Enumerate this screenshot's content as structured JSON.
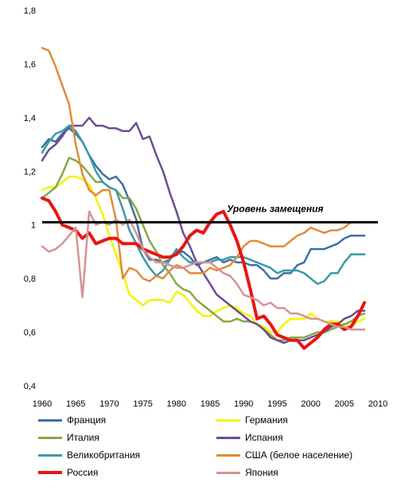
{
  "chart_data": {
    "type": "line",
    "title": "",
    "xlabel": "",
    "ylabel": "",
    "xlim": [
      1960,
      2010
    ],
    "ylim": [
      0.4,
      1.8
    ],
    "x_ticks": [
      "1960",
      "1965",
      "1970",
      "1975",
      "1980",
      "1985",
      "1990",
      "1995",
      "2000",
      "2005",
      "2010"
    ],
    "y_ticks": [
      "0,4",
      "0,6",
      "0,8",
      "1",
      "1,2",
      "1,4",
      "1,6",
      "1,8"
    ],
    "grid": false,
    "legend_position": "bottom",
    "annotation": {
      "text": "Уровень замещения",
      "y": 1.01
    },
    "series": [
      {
        "name": "Франция",
        "color": "#3f6fa4",
        "width": 2.5,
        "x": [
          1960,
          1961,
          1962,
          1963,
          1964,
          1965,
          1966,
          1967,
          1968,
          1969,
          1970,
          1971,
          1972,
          1973,
          1974,
          1975,
          1976,
          1977,
          1978,
          1979,
          1980,
          1981,
          1982,
          1983,
          1984,
          1985,
          1986,
          1987,
          1988,
          1989,
          1990,
          1991,
          1992,
          1993,
          1994,
          1995,
          1996,
          1997,
          1998,
          1999,
          2000,
          2001,
          2002,
          2003,
          2004,
          2005,
          2006,
          2007,
          2008
        ],
        "values": [
          1.29,
          1.32,
          1.31,
          1.34,
          1.36,
          1.34,
          1.31,
          1.26,
          1.22,
          1.19,
          1.17,
          1.18,
          1.15,
          1.09,
          1.02,
          0.91,
          0.87,
          0.87,
          0.86,
          0.87,
          0.9,
          0.9,
          0.88,
          0.85,
          0.86,
          0.87,
          0.88,
          0.86,
          0.87,
          0.86,
          0.86,
          0.85,
          0.85,
          0.83,
          0.8,
          0.8,
          0.82,
          0.82,
          0.85,
          0.86,
          0.91,
          0.91,
          0.91,
          0.92,
          0.93,
          0.95,
          0.96,
          0.96,
          0.96
        ]
      },
      {
        "name": "Германия",
        "color": "#f4f400",
        "width": 2.5,
        "x": [
          1960,
          1961,
          1962,
          1963,
          1964,
          1965,
          1966,
          1967,
          1968,
          1969,
          1970,
          1971,
          1972,
          1973,
          1974,
          1975,
          1976,
          1977,
          1978,
          1979,
          1980,
          1981,
          1982,
          1983,
          1984,
          1985,
          1986,
          1987,
          1988,
          1989,
          1990,
          1991,
          1992,
          1993,
          1994,
          1995,
          1996,
          1997,
          1998,
          1999,
          2000,
          2001,
          2002,
          2003,
          2004,
          2005,
          2006,
          2007,
          2008
        ],
        "values": [
          1.13,
          1.14,
          1.14,
          1.16,
          1.18,
          1.18,
          1.17,
          1.15,
          1.1,
          1.04,
          0.96,
          0.89,
          0.82,
          0.74,
          0.72,
          0.7,
          0.72,
          0.72,
          0.72,
          0.71,
          0.75,
          0.74,
          0.71,
          0.68,
          0.66,
          0.66,
          0.68,
          0.69,
          0.7,
          0.69,
          0.67,
          0.66,
          0.63,
          0.62,
          0.6,
          0.6,
          0.63,
          0.65,
          0.65,
          0.65,
          0.67,
          0.65,
          0.64,
          0.64,
          0.64,
          0.63,
          0.62,
          0.64,
          0.65
        ]
      },
      {
        "name": "Италия",
        "color": "#86a843",
        "width": 2.5,
        "x": [
          1960,
          1961,
          1962,
          1963,
          1964,
          1965,
          1966,
          1967,
          1968,
          1969,
          1970,
          1971,
          1972,
          1973,
          1974,
          1975,
          1976,
          1977,
          1978,
          1979,
          1980,
          1981,
          1982,
          1983,
          1984,
          1985,
          1986,
          1987,
          1988,
          1989,
          1990,
          1991,
          1992,
          1993,
          1994,
          1995,
          1996,
          1997,
          1998,
          1999,
          2000,
          2001,
          2002,
          2003,
          2004,
          2005,
          2006,
          2007,
          2008
        ],
        "values": [
          1.1,
          1.12,
          1.14,
          1.19,
          1.25,
          1.24,
          1.22,
          1.19,
          1.16,
          1.16,
          1.14,
          1.13,
          1.1,
          1.1,
          1.06,
          1.0,
          0.94,
          0.9,
          0.85,
          0.82,
          0.78,
          0.76,
          0.75,
          0.72,
          0.7,
          0.68,
          0.66,
          0.64,
          0.64,
          0.65,
          0.64,
          0.64,
          0.63,
          0.61,
          0.59,
          0.57,
          0.57,
          0.58,
          0.58,
          0.58,
          0.59,
          0.6,
          0.6,
          0.61,
          0.62,
          0.63,
          0.64,
          0.66,
          0.67
        ]
      },
      {
        "name": "Испания",
        "color": "#6c4d91",
        "width": 2.5,
        "x": [
          1960,
          1961,
          1962,
          1963,
          1964,
          1965,
          1966,
          1967,
          1968,
          1969,
          1970,
          1971,
          1972,
          1973,
          1974,
          1975,
          1976,
          1977,
          1978,
          1979,
          1980,
          1981,
          1982,
          1983,
          1984,
          1985,
          1986,
          1987,
          1988,
          1989,
          1990,
          1991,
          1992,
          1993,
          1994,
          1995,
          1996,
          1997,
          1998,
          1999,
          2000,
          2001,
          2002,
          2003,
          2004,
          2005,
          2006,
          2007,
          2008
        ],
        "values": [
          1.24,
          1.28,
          1.3,
          1.33,
          1.37,
          1.37,
          1.37,
          1.4,
          1.37,
          1.37,
          1.36,
          1.36,
          1.35,
          1.35,
          1.38,
          1.32,
          1.33,
          1.26,
          1.2,
          1.12,
          1.05,
          0.97,
          0.92,
          0.86,
          0.82,
          0.78,
          0.74,
          0.72,
          0.7,
          0.68,
          0.66,
          0.64,
          0.63,
          0.61,
          0.58,
          0.57,
          0.56,
          0.57,
          0.57,
          0.57,
          0.58,
          0.59,
          0.6,
          0.62,
          0.63,
          0.65,
          0.66,
          0.68,
          0.68
        ]
      },
      {
        "name": "Великобритания",
        "color": "#3c99a8",
        "width": 2.5,
        "x": [
          1960,
          1961,
          1962,
          1963,
          1964,
          1965,
          1966,
          1967,
          1968,
          1969,
          1970,
          1971,
          1972,
          1973,
          1974,
          1975,
          1976,
          1977,
          1978,
          1979,
          1980,
          1981,
          1982,
          1983,
          1984,
          1985,
          1986,
          1987,
          1988,
          1989,
          1990,
          1991,
          1992,
          1993,
          1994,
          1995,
          1996,
          1997,
          1998,
          1999,
          2000,
          2001,
          2002,
          2003,
          2004,
          2005,
          2006,
          2007,
          2008
        ],
        "values": [
          1.27,
          1.31,
          1.34,
          1.35,
          1.37,
          1.35,
          1.31,
          1.26,
          1.2,
          1.16,
          1.14,
          1.13,
          1.06,
          0.98,
          0.93,
          0.88,
          0.84,
          0.81,
          0.83,
          0.87,
          0.91,
          0.88,
          0.86,
          0.86,
          0.86,
          0.86,
          0.87,
          0.87,
          0.88,
          0.88,
          0.88,
          0.87,
          0.86,
          0.85,
          0.84,
          0.82,
          0.83,
          0.83,
          0.83,
          0.82,
          0.8,
          0.78,
          0.79,
          0.82,
          0.82,
          0.86,
          0.89,
          0.89,
          0.89
        ]
      },
      {
        "name": "США (белое население)",
        "color": "#e18b39",
        "width": 2.5,
        "x": [
          1960,
          1961,
          1962,
          1963,
          1964,
          1965,
          1966,
          1967,
          1968,
          1969,
          1970,
          1971,
          1972,
          1973,
          1974,
          1975,
          1976,
          1977,
          1978,
          1979,
          1980,
          1981,
          1982,
          1983,
          1984,
          1985,
          1986,
          1987,
          1988,
          1989,
          1990,
          1991,
          1992,
          1993,
          1994,
          1995,
          1996,
          1997,
          1998,
          1999,
          2000,
          2001,
          2002,
          2003,
          2004,
          2005,
          2006,
          2007,
          2008
        ],
        "values": [
          1.66,
          1.65,
          1.59,
          1.52,
          1.45,
          1.3,
          1.19,
          1.13,
          1.11,
          1.13,
          1.13,
          1.02,
          0.8,
          0.84,
          0.83,
          0.8,
          0.79,
          0.81,
          0.8,
          0.83,
          0.85,
          0.84,
          0.82,
          0.82,
          0.82,
          0.84,
          0.83,
          0.84,
          0.85,
          0.88,
          0.92,
          0.94,
          0.94,
          0.93,
          0.92,
          0.92,
          0.92,
          0.94,
          0.96,
          0.97,
          0.99,
          0.98,
          0.97,
          0.98,
          0.98,
          0.99,
          1.01,
          1.01,
          1.01
        ]
      },
      {
        "name": "Россия",
        "color": "#e81512",
        "width": 4,
        "x": [
          1960,
          1961,
          1962,
          1963,
          1964,
          1965,
          1966,
          1967,
          1968,
          1969,
          1970,
          1971,
          1972,
          1973,
          1974,
          1975,
          1976,
          1977,
          1978,
          1979,
          1980,
          1981,
          1982,
          1983,
          1984,
          1985,
          1986,
          1987,
          1988,
          1989,
          1990,
          1991,
          1992,
          1993,
          1994,
          1995,
          1996,
          1997,
          1998,
          1999,
          2000,
          2001,
          2002,
          2003,
          2004,
          2005,
          2006,
          2007,
          2008
        ],
        "values": [
          1.1,
          1.09,
          1.05,
          1.0,
          0.99,
          0.98,
          0.95,
          0.97,
          0.93,
          0.94,
          0.95,
          0.95,
          0.93,
          0.93,
          0.93,
          0.91,
          0.9,
          0.89,
          0.88,
          0.88,
          0.89,
          0.92,
          0.96,
          0.98,
          0.97,
          1.01,
          1.04,
          1.05,
          1.0,
          0.94,
          0.86,
          0.76,
          0.65,
          0.66,
          0.63,
          0.59,
          0.58,
          0.57,
          0.57,
          0.54,
          0.56,
          0.58,
          0.61,
          0.63,
          0.63,
          0.61,
          0.62,
          0.66,
          0.71
        ]
      },
      {
        "name": "Япония",
        "color": "#d59395",
        "width": 2.5,
        "x": [
          1960,
          1961,
          1962,
          1963,
          1964,
          1965,
          1966,
          1967,
          1968,
          1969,
          1970,
          1971,
          1972,
          1973,
          1974,
          1975,
          1976,
          1977,
          1978,
          1979,
          1980,
          1981,
          1982,
          1983,
          1984,
          1985,
          1986,
          1987,
          1988,
          1989,
          1990,
          1991,
          1992,
          1993,
          1994,
          1995,
          1996,
          1997,
          1998,
          1999,
          2000,
          2001,
          2002,
          2003,
          2004,
          2005,
          2006,
          2007,
          2008
        ],
        "values": [
          0.92,
          0.9,
          0.91,
          0.93,
          0.96,
          0.99,
          0.73,
          1.05,
          1.0,
          1.01,
          1.0,
          1.02,
          1.0,
          1.02,
          0.97,
          0.91,
          0.88,
          0.86,
          0.86,
          0.85,
          0.84,
          0.84,
          0.85,
          0.86,
          0.86,
          0.86,
          0.84,
          0.82,
          0.81,
          0.78,
          0.74,
          0.73,
          0.72,
          0.7,
          0.71,
          0.69,
          0.69,
          0.67,
          0.67,
          0.66,
          0.65,
          0.65,
          0.64,
          0.63,
          0.62,
          0.62,
          0.61,
          0.61,
          0.61
        ]
      }
    ]
  }
}
